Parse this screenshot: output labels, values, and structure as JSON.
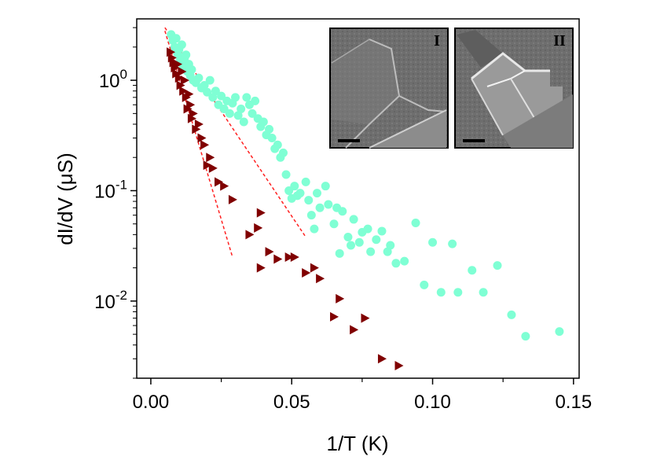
{
  "chart_data": {
    "type": "scatter",
    "xlabel": "1/T (K)",
    "ylabel": "dI/dV (μS)",
    "yscale": "log",
    "xlim": [
      -0.005,
      0.152
    ],
    "ylim": [
      0.002,
      3.6
    ],
    "x_ticks": [
      {
        "value": 0.0,
        "label": "0.00"
      },
      {
        "value": 0.05,
        "label": "0.05"
      },
      {
        "value": 0.1,
        "label": "0.10"
      },
      {
        "value": 0.15,
        "label": "0.15"
      }
    ],
    "y_ticks": [
      {
        "value": 1,
        "base": "10",
        "exp": "0"
      },
      {
        "value": 0.1,
        "base": "10",
        "exp": "-1"
      },
      {
        "value": 0.01,
        "base": "10",
        "exp": "-2"
      }
    ],
    "series": [
      {
        "marker": "circle",
        "color": "#7fffd4",
        "points": [
          [
            0.0072,
            2.6
          ],
          [
            0.0078,
            2.3
          ],
          [
            0.0085,
            2.0
          ],
          [
            0.009,
            2.4
          ],
          [
            0.0095,
            1.75
          ],
          [
            0.01,
            1.9
          ],
          [
            0.0105,
            1.55
          ],
          [
            0.011,
            2.1
          ],
          [
            0.0115,
            1.35
          ],
          [
            0.012,
            1.6
          ],
          [
            0.0125,
            1.7
          ],
          [
            0.013,
            1.2
          ],
          [
            0.0135,
            1.4
          ],
          [
            0.014,
            1.1
          ],
          [
            0.0145,
            1.25
          ],
          [
            0.015,
            1.0
          ],
          [
            0.016,
            0.95
          ],
          [
            0.017,
            1.05
          ],
          [
            0.018,
            0.85
          ],
          [
            0.019,
            0.9
          ],
          [
            0.02,
            0.78
          ],
          [
            0.021,
            1.0
          ],
          [
            0.022,
            0.7
          ],
          [
            0.023,
            0.8
          ],
          [
            0.024,
            0.6
          ],
          [
            0.025,
            0.72
          ],
          [
            0.026,
            0.55
          ],
          [
            0.027,
            0.65
          ],
          [
            0.028,
            0.5
          ],
          [
            0.029,
            0.62
          ],
          [
            0.03,
            0.7
          ],
          [
            0.031,
            0.48
          ],
          [
            0.032,
            0.55
          ],
          [
            0.033,
            0.42
          ],
          [
            0.034,
            0.7
          ],
          [
            0.035,
            0.6
          ],
          [
            0.036,
            0.5
          ],
          [
            0.037,
            0.65
          ],
          [
            0.038,
            0.45
          ],
          [
            0.039,
            0.38
          ],
          [
            0.04,
            0.42
          ],
          [
            0.041,
            0.32
          ],
          [
            0.042,
            0.36
          ],
          [
            0.043,
            0.3
          ],
          [
            0.044,
            0.24
          ],
          [
            0.045,
            0.26
          ],
          [
            0.046,
            0.2
          ],
          [
            0.047,
            0.22
          ],
          [
            0.048,
            0.14
          ],
          [
            0.049,
            0.1
          ],
          [
            0.05,
            0.085
          ],
          [
            0.051,
            0.11
          ],
          [
            0.052,
            0.09
          ],
          [
            0.053,
            0.095
          ],
          [
            0.055,
            0.12
          ],
          [
            0.056,
            0.082
          ],
          [
            0.057,
            0.06
          ],
          [
            0.058,
            0.045
          ],
          [
            0.059,
            0.095
          ],
          [
            0.06,
            0.07
          ],
          [
            0.062,
            0.11
          ],
          [
            0.063,
            0.075
          ],
          [
            0.065,
            0.05
          ],
          [
            0.066,
            0.07
          ],
          [
            0.067,
            0.027
          ],
          [
            0.068,
            0.065
          ],
          [
            0.07,
            0.038
          ],
          [
            0.071,
            0.032
          ],
          [
            0.072,
            0.055
          ],
          [
            0.074,
            0.034
          ],
          [
            0.075,
            0.042
          ],
          [
            0.077,
            0.045
          ],
          [
            0.078,
            0.028
          ],
          [
            0.08,
            0.036
          ],
          [
            0.082,
            0.043
          ],
          [
            0.084,
            0.028
          ],
          [
            0.085,
            0.032
          ],
          [
            0.087,
            0.022
          ],
          [
            0.09,
            0.023
          ],
          [
            0.094,
            0.051
          ],
          [
            0.097,
            0.014
          ],
          [
            0.1,
            0.034
          ],
          [
            0.103,
            0.012
          ],
          [
            0.107,
            0.033
          ],
          [
            0.109,
            0.012
          ],
          [
            0.114,
            0.019
          ],
          [
            0.118,
            0.012
          ],
          [
            0.123,
            0.021
          ],
          [
            0.128,
            0.0075
          ],
          [
            0.133,
            0.0048
          ],
          [
            0.145,
            0.0053
          ]
        ]
      },
      {
        "marker": "triangle-right",
        "color": "#800000",
        "points": [
          [
            0.007,
            1.8
          ],
          [
            0.0075,
            1.6
          ],
          [
            0.008,
            1.45
          ],
          [
            0.0085,
            1.3
          ],
          [
            0.009,
            1.15
          ],
          [
            0.0095,
            1.4
          ],
          [
            0.01,
            1.05
          ],
          [
            0.0105,
            0.9
          ],
          [
            0.011,
            1.2
          ],
          [
            0.0115,
            0.8
          ],
          [
            0.012,
            1.0
          ],
          [
            0.0125,
            0.7
          ],
          [
            0.013,
            0.55
          ],
          [
            0.0135,
            0.75
          ],
          [
            0.014,
            0.6
          ],
          [
            0.0145,
            0.45
          ],
          [
            0.015,
            0.5
          ],
          [
            0.016,
            0.36
          ],
          [
            0.017,
            0.4
          ],
          [
            0.018,
            0.3
          ],
          [
            0.019,
            0.26
          ],
          [
            0.02,
            0.17
          ],
          [
            0.021,
            0.2
          ],
          [
            0.022,
            0.16
          ],
          [
            0.024,
            0.12
          ],
          [
            0.026,
            0.11
          ],
          [
            0.029,
            0.083
          ],
          [
            0.039,
            0.063
          ],
          [
            0.035,
            0.04
          ],
          [
            0.038,
            0.046
          ],
          [
            0.039,
            0.02
          ],
          [
            0.042,
            0.028
          ],
          [
            0.045,
            0.024
          ],
          [
            0.049,
            0.025
          ],
          [
            0.051,
            0.025
          ],
          [
            0.055,
            0.018
          ],
          [
            0.058,
            0.02
          ],
          [
            0.06,
            0.016
          ],
          [
            0.065,
            0.0072
          ],
          [
            0.067,
            0.0105
          ],
          [
            0.072,
            0.0055
          ],
          [
            0.076,
            0.007
          ],
          [
            0.082,
            0.003
          ],
          [
            0.088,
            0.0026
          ]
        ]
      }
    ],
    "fit_lines": [
      {
        "color": "#ff2020",
        "from": [
          0.005,
          3.0
        ],
        "to": [
          0.055,
          0.038
        ]
      },
      {
        "color": "#ff2020",
        "from": [
          0.005,
          2.8
        ],
        "to": [
          0.029,
          0.025
        ]
      }
    ],
    "insets": [
      {
        "label": "I"
      },
      {
        "label": "II"
      }
    ]
  }
}
